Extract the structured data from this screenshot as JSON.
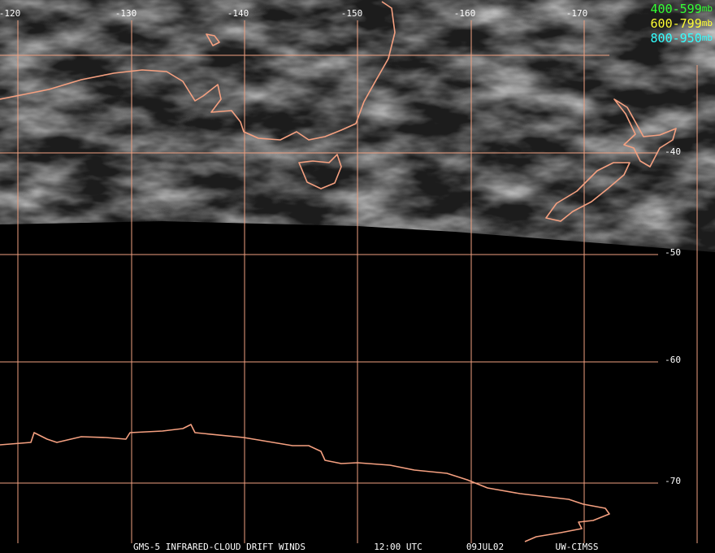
{
  "map": {
    "lon_labels": [
      "-120",
      "-130",
      "-140",
      "-150",
      "-160",
      "-170"
    ],
    "lat_labels": [
      "-40",
      "-50",
      "-60",
      "-70"
    ],
    "legend": [
      {
        "range": "400-599",
        "unit": "mb",
        "color": "#33ff33"
      },
      {
        "range": "600-799",
        "unit": "mb",
        "color": "#ffff33"
      },
      {
        "range": "800-950",
        "unit": "mb",
        "color": "#33ffff"
      }
    ],
    "footer": [
      "GMS-5 INFRARED-CLOUD DRIFT WINDS",
      "12:00 UTC",
      "09JUL02",
      "UW-CIMSS"
    ]
  }
}
